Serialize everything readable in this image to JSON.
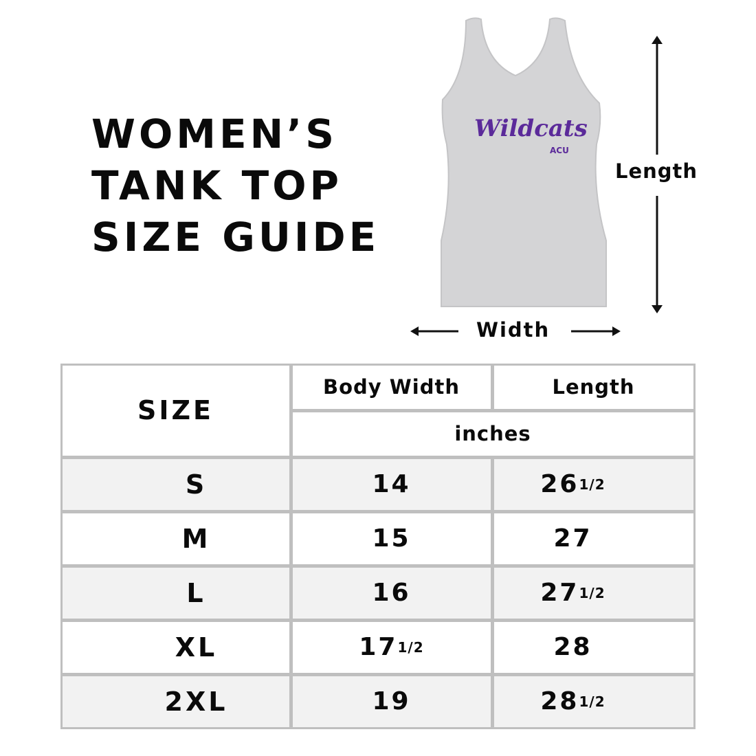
{
  "title": [
    "WOMEN’S",
    "TANK TOP",
    "SIZE GUIDE"
  ],
  "garment": {
    "graphic_text": "Wildcats",
    "logo_text": "ACU",
    "color": "#d3d3d3",
    "accent": "#5b2a9a"
  },
  "dimension_labels": {
    "length": "Length",
    "width": "Width"
  },
  "table": {
    "headers": {
      "size": "SIZE",
      "body_width": "Body Width",
      "length": "Length",
      "unit": "inches"
    },
    "rows": [
      {
        "size": "S",
        "width": "14",
        "width_frac": "",
        "length": "26",
        "length_frac": "1/2"
      },
      {
        "size": "M",
        "width": "15",
        "width_frac": "",
        "length": "27",
        "length_frac": ""
      },
      {
        "size": "L",
        "width": "16",
        "width_frac": "",
        "length": "27",
        "length_frac": "1/2"
      },
      {
        "size": "XL",
        "width": "17",
        "width_frac": "1/2",
        "length": "28",
        "length_frac": ""
      },
      {
        "size": "2XL",
        "width": "19",
        "width_frac": "",
        "length": "28",
        "length_frac": "1/2"
      }
    ]
  }
}
